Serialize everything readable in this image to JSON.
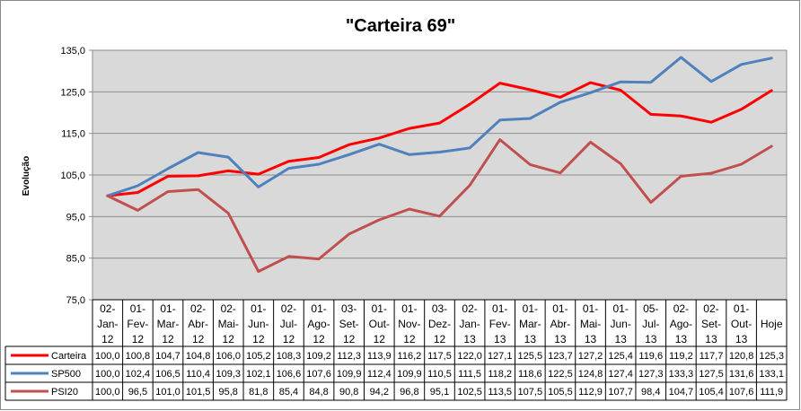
{
  "chart_data": {
    "type": "line",
    "title": "\"Carteira 69\"",
    "ylabel": "Evolução",
    "xlabel": "",
    "ylim": [
      75,
      135
    ],
    "yticks": [
      "135,0",
      "125,0",
      "115,0",
      "105,0",
      "95,0",
      "85,0",
      "75,0"
    ],
    "ytick_values": [
      135,
      125,
      115,
      105,
      95,
      85,
      75
    ],
    "grid": true,
    "plot_background": "#d9d9d9",
    "categories": [
      [
        "02-",
        "Jan-",
        "12"
      ],
      [
        "01-",
        "Fev-",
        "12"
      ],
      [
        "01-",
        "Mar-",
        "12"
      ],
      [
        "02-",
        "Abr-",
        "12"
      ],
      [
        "02-",
        "Mai-",
        "12"
      ],
      [
        "01-",
        "Jun-",
        "12"
      ],
      [
        "02-",
        "Jul-",
        "12"
      ],
      [
        "01-",
        "Ago-",
        "12"
      ],
      [
        "03-",
        "Set-",
        "12"
      ],
      [
        "01-",
        "Out-",
        "12"
      ],
      [
        "01-",
        "Nov-",
        "12"
      ],
      [
        "03-",
        "Dez-",
        "12"
      ],
      [
        "02-",
        "Jan-",
        "13"
      ],
      [
        "01-",
        "Fev-",
        "13"
      ],
      [
        "01-",
        "Mar-",
        "13"
      ],
      [
        "01-",
        "Abr-",
        "13"
      ],
      [
        "01-",
        "Mai-",
        "13"
      ],
      [
        "01-",
        "Jun-",
        "13"
      ],
      [
        "05-",
        "Jul-",
        "13"
      ],
      [
        "02-",
        "Ago-",
        "13"
      ],
      [
        "02-",
        "Set-",
        "13"
      ],
      [
        "01-",
        "Out-",
        "13"
      ],
      [
        "Hoje"
      ]
    ],
    "series": [
      {
        "name": "Carteira",
        "color": "#ff0000",
        "values": [
          100.0,
          100.8,
          104.7,
          104.8,
          106.0,
          105.2,
          108.3,
          109.2,
          112.3,
          113.9,
          116.2,
          117.5,
          122.0,
          127.1,
          125.5,
          123.7,
          127.2,
          125.4,
          119.6,
          119.2,
          117.7,
          120.8,
          125.3
        ],
        "labels": [
          "100,0",
          "100,8",
          "104,7",
          "104,8",
          "106,0",
          "105,2",
          "108,3",
          "109,2",
          "112,3",
          "113,9",
          "116,2",
          "117,5",
          "122,0",
          "127,1",
          "125,5",
          "123,7",
          "127,2",
          "125,4",
          "119,6",
          "119,2",
          "117,7",
          "120,8",
          "125,3"
        ]
      },
      {
        "name": "SP500",
        "color": "#4f81bd",
        "values": [
          100.0,
          102.4,
          106.5,
          110.4,
          109.3,
          102.1,
          106.6,
          107.6,
          109.9,
          112.4,
          109.9,
          110.5,
          111.5,
          118.2,
          118.6,
          122.5,
          124.8,
          127.4,
          127.3,
          133.3,
          127.5,
          131.6,
          133.1
        ],
        "labels": [
          "100,0",
          "102,4",
          "106,5",
          "110,4",
          "109,3",
          "102,1",
          "106,6",
          "107,6",
          "109,9",
          "112,4",
          "109,9",
          "110,5",
          "111,5",
          "118,2",
          "118,6",
          "122,5",
          "124,8",
          "127,4",
          "127,3",
          "133,3",
          "127,5",
          "131,6",
          "133,1"
        ]
      },
      {
        "name": "PSI20",
        "color": "#c0504d",
        "values": [
          100.0,
          96.5,
          101.0,
          101.5,
          95.8,
          81.8,
          85.4,
          84.8,
          90.8,
          94.2,
          96.8,
          95.1,
          102.5,
          113.5,
          107.5,
          105.5,
          112.9,
          107.7,
          98.4,
          104.7,
          105.4,
          107.6,
          111.9
        ],
        "labels": [
          "100,0",
          "96,5",
          "101,0",
          "101,5",
          "95,8",
          "81,8",
          "85,4",
          "84,8",
          "90,8",
          "94,2",
          "96,8",
          "95,1",
          "102,5",
          "113,5",
          "107,5",
          "105,5",
          "112,9",
          "107,7",
          "98,4",
          "104,7",
          "105,4",
          "107,6",
          "111,9"
        ]
      }
    ]
  }
}
